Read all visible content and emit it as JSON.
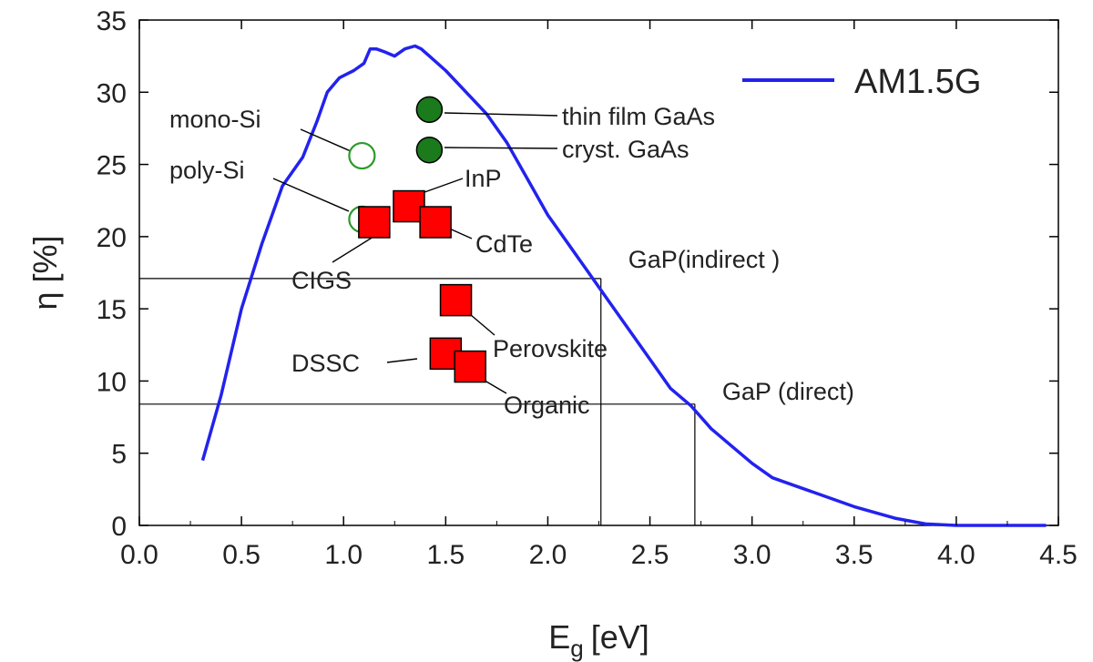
{
  "chart_data": {
    "type": "line",
    "xlabel": "E",
    "xlabel_sub": "g",
    "xlabel_unit": "[eV]",
    "ylabel": "η [%]",
    "xlim": [
      0.0,
      4.5
    ],
    "ylim": [
      0,
      35
    ],
    "xticks": [
      "0.0",
      "0.5",
      "1.0",
      "1.5",
      "2.0",
      "2.5",
      "3.0",
      "3.5",
      "4.0",
      "4.5"
    ],
    "yticks": [
      "0",
      "5",
      "10",
      "15",
      "20",
      "25",
      "30",
      "35"
    ],
    "grid": false,
    "legend": {
      "position": "top-right",
      "entries": [
        {
          "label": "AM1.5G",
          "color": "#2222ee"
        }
      ]
    },
    "series": [
      {
        "name": "AM1.5G",
        "color": "#2222ee",
        "x": [
          0.31,
          0.4,
          0.5,
          0.6,
          0.7,
          0.8,
          0.87,
          0.92,
          0.98,
          1.05,
          1.1,
          1.13,
          1.16,
          1.2,
          1.25,
          1.3,
          1.35,
          1.38,
          1.42,
          1.5,
          1.6,
          1.7,
          1.8,
          1.9,
          2.0,
          2.1,
          2.2,
          2.3,
          2.4,
          2.5,
          2.6,
          2.7,
          2.8,
          2.9,
          3.0,
          3.1,
          3.3,
          3.5,
          3.7,
          3.85,
          4.0,
          4.2,
          4.44
        ],
        "y": [
          4.5,
          9.0,
          15.0,
          19.5,
          23.5,
          25.5,
          28.0,
          30.0,
          31.0,
          31.5,
          32.0,
          33.0,
          33.0,
          32.8,
          32.5,
          33.0,
          33.2,
          33.0,
          32.5,
          31.5,
          30.0,
          28.5,
          26.5,
          24.0,
          21.5,
          19.5,
          17.5,
          15.5,
          13.5,
          11.5,
          9.5,
          8.3,
          6.7,
          5.5,
          4.3,
          3.3,
          2.3,
          1.3,
          0.5,
          0.1,
          0.0,
          0.0,
          0.0
        ]
      }
    ],
    "markers": [
      {
        "label": "mono-Si",
        "x": 1.09,
        "y": 25.6,
        "shape": "open-circle",
        "color": "#2a9a2a"
      },
      {
        "label": "poly-Si",
        "x": 1.09,
        "y": 21.2,
        "shape": "open-circle",
        "color": "#2a9a2a"
      },
      {
        "label": "thin film GaAs",
        "x": 1.42,
        "y": 28.8,
        "shape": "filled-circle",
        "color": "#1b7a1b"
      },
      {
        "label": "cryst. GaAs",
        "x": 1.42,
        "y": 26.0,
        "shape": "filled-circle",
        "color": "#1b7a1b"
      },
      {
        "label": "InP",
        "x": 1.32,
        "y": 22.1,
        "shape": "square",
        "color": "#ff0000"
      },
      {
        "label": "CIGS",
        "x": 1.15,
        "y": 21.0,
        "shape": "square",
        "color": "#ff0000"
      },
      {
        "label": "CdTe",
        "x": 1.45,
        "y": 21.0,
        "shape": "square",
        "color": "#ff0000"
      },
      {
        "label": "Perovskite",
        "x": 1.55,
        "y": 15.6,
        "shape": "square",
        "color": "#ff0000"
      },
      {
        "label": "DSSC",
        "x": 1.5,
        "y": 11.9,
        "shape": "square",
        "color": "#ff0000"
      },
      {
        "label": "Organic",
        "x": 1.62,
        "y": 11.0,
        "shape": "square",
        "color": "#ff0000"
      }
    ],
    "reference_lines": [
      {
        "label": "GaP(indirect )",
        "x": 2.26,
        "y": 17.1
      },
      {
        "label": "GaP (direct)",
        "x": 2.72,
        "y": 8.4
      }
    ]
  }
}
